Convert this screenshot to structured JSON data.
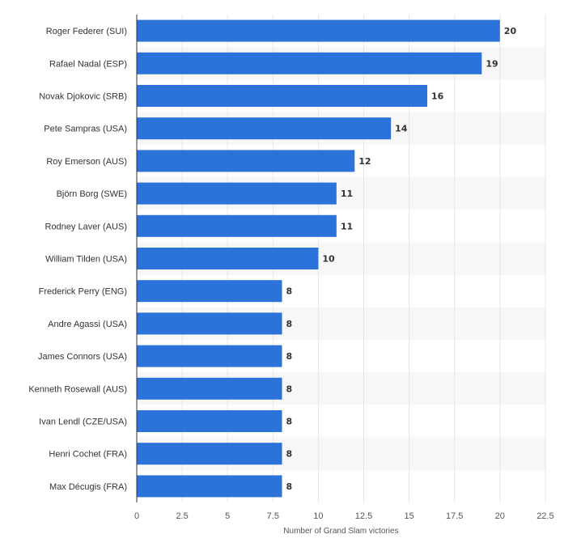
{
  "chart_data": {
    "type": "bar",
    "orientation": "horizontal",
    "categories": [
      "Roger Federer (SUI)",
      "Rafael Nadal (ESP)",
      "Novak Djokovic (SRB)",
      "Pete Sampras (USA)",
      "Roy Emerson (AUS)",
      "Björn Borg (SWE)",
      "Rodney Laver (AUS)",
      "William Tilden (USA)",
      "Frederick Perry (ENG)",
      "Andre Agassi (USA)",
      "James Connors (USA)",
      "Kenneth Rosewall (AUS)",
      "Ivan Lendl (CZE/USA)",
      "Henri Cochet (FRA)",
      "Max Décugis (FRA)"
    ],
    "values": [
      20,
      19,
      16,
      14,
      12,
      11,
      11,
      10,
      8,
      8,
      8,
      8,
      8,
      8,
      8
    ],
    "data_labels": [
      "20",
      "19",
      "16",
      "14",
      "12",
      "11",
      "11",
      "10",
      "8",
      "8",
      "8",
      "8",
      "8",
      "8",
      "8"
    ],
    "xlabel": "Number of Grand Slam victories",
    "ylabel": "",
    "xlim": [
      0,
      22.5
    ],
    "ticks": [
      0,
      2.5,
      5,
      7.5,
      10,
      12.5,
      15,
      17.5,
      20,
      22.5
    ],
    "tick_labels": [
      "0",
      "2.5",
      "5",
      "7.5",
      "10",
      "12.5",
      "15",
      "17.5",
      "20",
      "22.5"
    ],
    "grid": "vertical",
    "alternating_row_bands": true,
    "legend": "none",
    "colors": {
      "bar": "#2b72d9",
      "band": "#f7f7f7",
      "grid": "#e6e6e6",
      "axis": "#333333",
      "text": "#333333"
    }
  }
}
